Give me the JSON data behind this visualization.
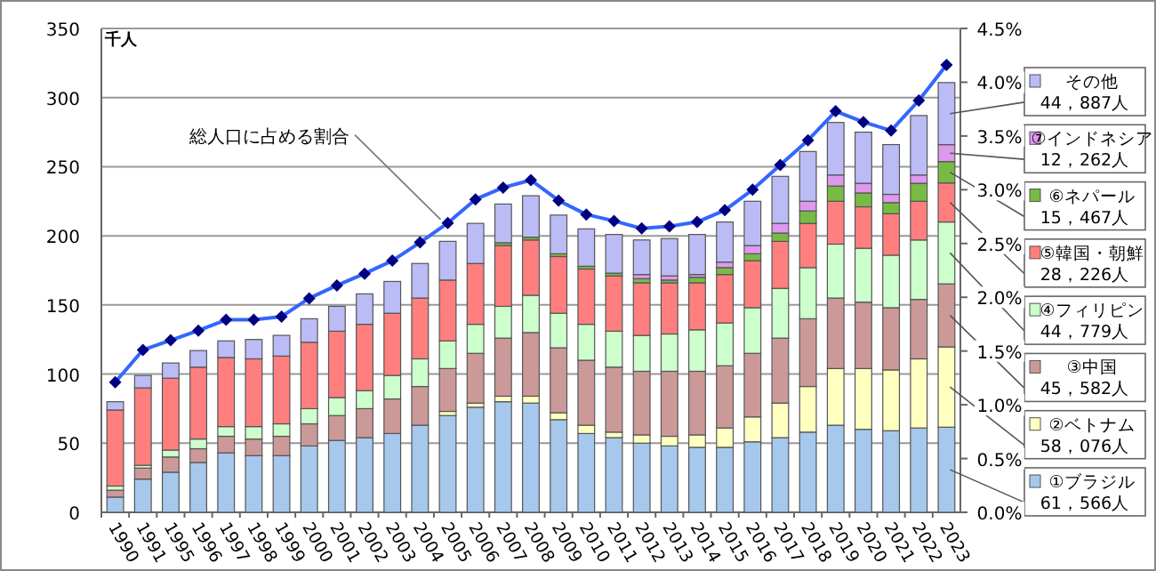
{
  "chart_data": {
    "type": "bar",
    "stacked": true,
    "ylabel": "千人",
    "categories": [
      "1990",
      "1991",
      "1995",
      "1996",
      "1997",
      "1998",
      "1999",
      "2000",
      "2001",
      "2002",
      "2003",
      "2004",
      "2005",
      "2006",
      "2007",
      "2008",
      "2009",
      "2010",
      "2011",
      "2012",
      "2013",
      "2014",
      "2015",
      "2016",
      "2017",
      "2018",
      "2019",
      "2020",
      "2021",
      "2022",
      "2023"
    ],
    "series": [
      {
        "name": "①ブラジル",
        "color": "#a6c8ec",
        "values": [
          11,
          24,
          29,
          36,
          43,
          41,
          41,
          48,
          52,
          54,
          57,
          63,
          70,
          76,
          80,
          79,
          67,
          57,
          54,
          50,
          48,
          47,
          47,
          51,
          54,
          58,
          63,
          60,
          59,
          61,
          61.566
        ]
      },
      {
        "name": "②ベトナム",
        "color": "#ffffc0",
        "values": [
          0,
          0,
          0,
          0,
          0,
          0,
          0,
          0,
          0,
          0,
          0,
          0,
          3,
          3,
          4,
          5,
          5,
          6,
          4,
          6,
          7,
          9,
          14,
          18,
          25,
          33,
          41,
          44,
          44,
          50,
          58.076
        ]
      },
      {
        "name": "③中国",
        "color": "#cc9999",
        "values": [
          5,
          8,
          11,
          10,
          12,
          12,
          14,
          16,
          18,
          21,
          25,
          28,
          31,
          36,
          42,
          46,
          47,
          47,
          47,
          46,
          47,
          46,
          45,
          46,
          47,
          49,
          51,
          48,
          45,
          43,
          45.582
        ]
      },
      {
        "name": "④フィリピン",
        "color": "#ccffcc",
        "values": [
          3,
          2,
          5,
          7,
          7,
          9,
          9,
          11,
          13,
          13,
          17,
          20,
          20,
          21,
          23,
          27,
          25,
          26,
          26,
          26,
          27,
          30,
          31,
          33,
          36,
          37,
          39,
          39,
          38,
          43,
          44.779
        ]
      },
      {
        "name": "⑤韓国・朝鮮",
        "color": "#ff7f7f",
        "values": [
          55,
          56,
          52,
          52,
          50,
          49,
          49,
          48,
          48,
          48,
          45,
          44,
          44,
          44,
          44,
          40,
          41,
          40,
          40,
          38,
          37,
          34,
          35,
          34,
          34,
          32,
          31,
          30,
          30,
          28,
          28.226
        ]
      },
      {
        "name": "⑥ネパール",
        "color": "#77bb44",
        "values": [
          0,
          0,
          0,
          0,
          0,
          0,
          0,
          0,
          0,
          0,
          0,
          0,
          0,
          0,
          2,
          2,
          2,
          2,
          2,
          3,
          2,
          4,
          5,
          5,
          6,
          9,
          11,
          10,
          8,
          13,
          15.467
        ]
      },
      {
        "name": "⑦インドネシア",
        "color": "#dd99ee",
        "values": [
          0,
          0,
          0,
          0,
          0,
          0,
          0,
          0,
          0,
          0,
          0,
          0,
          0,
          0,
          0,
          0,
          0,
          0,
          0,
          3,
          3,
          2,
          4,
          6,
          7,
          7,
          8,
          7,
          6,
          6,
          12.262
        ]
      },
      {
        "name": "その他",
        "color": "#bbbbf5",
        "values": [
          6,
          9,
          11,
          12,
          12,
          14,
          15,
          17,
          18,
          22,
          23,
          25,
          28,
          29,
          28,
          30,
          28,
          27,
          28,
          25,
          27,
          29,
          29,
          32,
          34,
          36,
          38,
          37,
          36,
          43,
          44.887
        ]
      },
      {
        "name": "総人口に占める割合",
        "type": "line",
        "axis": "y2",
        "color": "#3366ff",
        "marker": "diamond",
        "values": [
          1.21,
          1.51,
          1.6,
          1.69,
          1.79,
          1.79,
          1.82,
          1.99,
          2.11,
          2.22,
          2.34,
          2.51,
          2.69,
          2.91,
          3.02,
          3.09,
          2.9,
          2.77,
          2.71,
          2.64,
          2.66,
          2.7,
          2.81,
          3.0,
          3.23,
          3.46,
          3.73,
          3.63,
          3.55,
          3.83,
          4.16
        ]
      }
    ],
    "ylim": [
      0,
      350
    ],
    "yticks": [
      0,
      50,
      100,
      150,
      200,
      250,
      300,
      350
    ],
    "y2lim": [
      0,
      4.5
    ],
    "y2ticks": [
      {
        "value": 0,
        "label": "0.0%"
      },
      {
        "value": 0.5,
        "label": "0.5%"
      },
      {
        "value": 1,
        "label": "1.0%"
      },
      {
        "value": 1.5,
        "label": "1.5%"
      },
      {
        "value": 2,
        "label": "2.0%"
      },
      {
        "value": 2.5,
        "label": "2.5%"
      },
      {
        "value": 3,
        "label": "3.0%"
      },
      {
        "value": 3.5,
        "label": "3.5%"
      },
      {
        "value": 4,
        "label": "4.0%"
      },
      {
        "value": 4.5,
        "label": "4.5%"
      }
    ],
    "grid": "y",
    "legend": "right",
    "annotations": [
      {
        "text": "61，566人",
        "x": "2023",
        "y": 30.8
      },
      {
        "text": "58，076人",
        "x": "2023",
        "y": 90.6
      },
      {
        "text": "45，582人",
        "x": "2023",
        "y": 142.4
      },
      {
        "text": "44，779人",
        "x": "2023",
        "y": 187.6
      },
      {
        "text": "28，226人",
        "x": "2023",
        "y": 224.1
      },
      {
        "text": "15，467人",
        "x": "2023",
        "y": 246.0
      },
      {
        "text": "12，262人",
        "x": "2023",
        "y": 259.8
      },
      {
        "text": "44，887人",
        "x": "2023",
        "y": 288.4
      }
    ]
  }
}
